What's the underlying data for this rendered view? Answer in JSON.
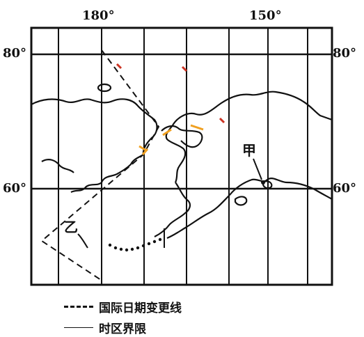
{
  "top_labels": {
    "lon_180": "180°",
    "lon_150": "150°"
  },
  "side_labels": {
    "lat_80_left": "80°",
    "lat_80_right": "80°",
    "lat_60_left": "60°",
    "lat_60_right": "60°"
  },
  "place_labels": {
    "jia": "甲",
    "yi": "乙"
  },
  "legend": [
    {
      "style": "dashed",
      "text": "国际日期变更线"
    },
    {
      "style": "thin",
      "text": "时区界限"
    }
  ],
  "colors": {
    "ink": "#111111",
    "highlight_orange": "#f0a020",
    "highlight_red": "#cc3322"
  }
}
